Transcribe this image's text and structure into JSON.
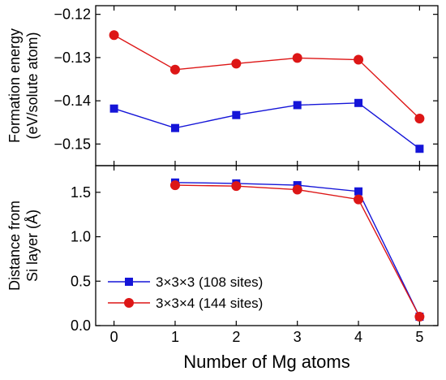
{
  "chart_data": {
    "type": "line",
    "xlabel": "Number of Mg atoms",
    "x": [
      0,
      1,
      2,
      3,
      4,
      5
    ],
    "xlim": [
      -0.3,
      5.3
    ],
    "xticks": [
      "0",
      "1",
      "2",
      "3",
      "4",
      "5"
    ],
    "series_style": [
      {
        "name": "3×3×3 (108 sites)",
        "color": "#1515d8",
        "marker": "square"
      },
      {
        "name": "3×3×4 (144 sites)",
        "color": "#dd1616",
        "marker": "circle"
      }
    ],
    "legend": {
      "placement": "lower-left of bottom panel"
    },
    "panels": [
      {
        "ylabel_lines": [
          "Formation energy",
          "(eV/solute atom)"
        ],
        "ylim": [
          -0.155,
          -0.118
        ],
        "yticks": [
          -0.12,
          -0.13,
          -0.14,
          -0.15
        ],
        "ytick_labels": [
          "−0.12",
          "−0.13",
          "−0.14",
          "−0.15"
        ],
        "series": [
          {
            "name": "3×3×3 (108 sites)",
            "x": [
              0,
              1,
              2,
              3,
              4,
              5
            ],
            "values": [
              -0.1418,
              -0.1463,
              -0.1433,
              -0.141,
              -0.1405,
              -0.1511
            ]
          },
          {
            "name": "3×3×4 (144 sites)",
            "x": [
              0,
              1,
              2,
              3,
              4,
              5
            ],
            "values": [
              -0.1248,
              -0.1328,
              -0.1314,
              -0.1301,
              -0.1305,
              -0.1441
            ]
          }
        ]
      },
      {
        "ylabel_lines": [
          "Distance from",
          "Si layer (Å)"
        ],
        "ylim": [
          0,
          1.8
        ],
        "yticks": [
          0,
          0.5,
          1.0,
          1.5
        ],
        "ytick_labels": [
          "0.0",
          "0.5",
          "1.0",
          "1.5"
        ],
        "series": [
          {
            "name": "3×3×3 (108 sites)",
            "x": [
              1,
              2,
              3,
              4,
              5
            ],
            "values": [
              1.61,
              1.6,
              1.58,
              1.51,
              0.1
            ]
          },
          {
            "name": "3×3×4 (144 sites)",
            "x": [
              1,
              2,
              3,
              4,
              5
            ],
            "values": [
              1.58,
              1.57,
              1.53,
              1.42,
              0.1
            ]
          }
        ]
      }
    ]
  }
}
